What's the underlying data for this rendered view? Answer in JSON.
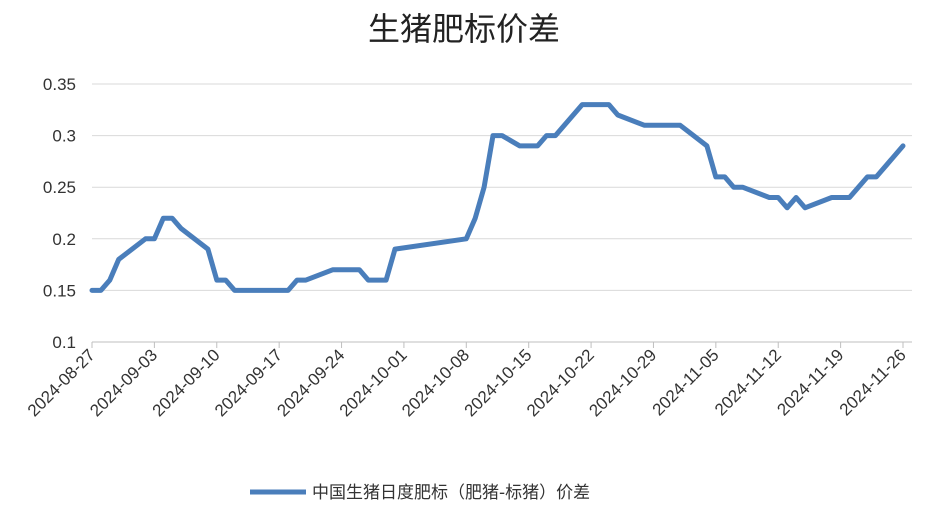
{
  "chart_data": {
    "type": "line",
    "title": "生猪肥标价差",
    "xlabel": "",
    "ylabel": "",
    "ylim": [
      0.1,
      0.35
    ],
    "yticks": [
      "0.1",
      "0.15",
      "0.2",
      "0.25",
      "0.3",
      "0.35"
    ],
    "xticks": [
      "2024-08-27",
      "2024-09-03",
      "2024-09-10",
      "2024-09-17",
      "2024-09-24",
      "2024-10-01",
      "2024-10-08",
      "2024-10-15",
      "2024-10-22",
      "2024-10-29",
      "2024-11-05",
      "2024-11-12",
      "2024-11-19",
      "2024-11-26"
    ],
    "x_start": "2024-08-27",
    "x_end": "2024-11-26",
    "grid": "horizontal",
    "legend_position": "bottom",
    "series": [
      {
        "name": "中国生猪日度肥标（肥猪-标猪）价差",
        "color": "#4a7ebb",
        "points": [
          [
            "2024-08-27",
            0.15
          ],
          [
            "2024-08-28",
            0.15
          ],
          [
            "2024-08-29",
            0.16
          ],
          [
            "2024-08-30",
            0.18
          ],
          [
            "2024-09-02",
            0.2
          ],
          [
            "2024-09-03",
            0.2
          ],
          [
            "2024-09-04",
            0.22
          ],
          [
            "2024-09-05",
            0.22
          ],
          [
            "2024-09-06",
            0.21
          ],
          [
            "2024-09-09",
            0.19
          ],
          [
            "2024-09-10",
            0.16
          ],
          [
            "2024-09-11",
            0.16
          ],
          [
            "2024-09-12",
            0.15
          ],
          [
            "2024-09-13",
            0.15
          ],
          [
            "2024-09-18",
            0.15
          ],
          [
            "2024-09-19",
            0.16
          ],
          [
            "2024-09-20",
            0.16
          ],
          [
            "2024-09-23",
            0.17
          ],
          [
            "2024-09-24",
            0.17
          ],
          [
            "2024-09-25",
            0.17
          ],
          [
            "2024-09-26",
            0.17
          ],
          [
            "2024-09-27",
            0.16
          ],
          [
            "2024-09-29",
            0.16
          ],
          [
            "2024-09-30",
            0.19
          ],
          [
            "2024-10-08",
            0.2
          ],
          [
            "2024-10-09",
            0.22
          ],
          [
            "2024-10-10",
            0.25
          ],
          [
            "2024-10-11",
            0.3
          ],
          [
            "2024-10-12",
            0.3
          ],
          [
            "2024-10-14",
            0.29
          ],
          [
            "2024-10-15",
            0.29
          ],
          [
            "2024-10-16",
            0.29
          ],
          [
            "2024-10-17",
            0.3
          ],
          [
            "2024-10-18",
            0.3
          ],
          [
            "2024-10-21",
            0.33
          ],
          [
            "2024-10-22",
            0.33
          ],
          [
            "2024-10-23",
            0.33
          ],
          [
            "2024-10-24",
            0.33
          ],
          [
            "2024-10-25",
            0.32
          ],
          [
            "2024-10-28",
            0.31
          ],
          [
            "2024-10-29",
            0.31
          ],
          [
            "2024-10-30",
            0.31
          ],
          [
            "2024-10-31",
            0.31
          ],
          [
            "2024-11-01",
            0.31
          ],
          [
            "2024-11-04",
            0.29
          ],
          [
            "2024-11-05",
            0.26
          ],
          [
            "2024-11-06",
            0.26
          ],
          [
            "2024-11-07",
            0.25
          ],
          [
            "2024-11-08",
            0.25
          ],
          [
            "2024-11-11",
            0.24
          ],
          [
            "2024-11-12",
            0.24
          ],
          [
            "2024-11-13",
            0.23
          ],
          [
            "2024-11-14",
            0.24
          ],
          [
            "2024-11-15",
            0.23
          ],
          [
            "2024-11-18",
            0.24
          ],
          [
            "2024-11-19",
            0.24
          ],
          [
            "2024-11-20",
            0.24
          ],
          [
            "2024-11-21",
            0.25
          ],
          [
            "2024-11-22",
            0.26
          ],
          [
            "2024-11-23",
            0.26
          ],
          [
            "2024-11-26",
            0.29
          ]
        ]
      }
    ]
  }
}
